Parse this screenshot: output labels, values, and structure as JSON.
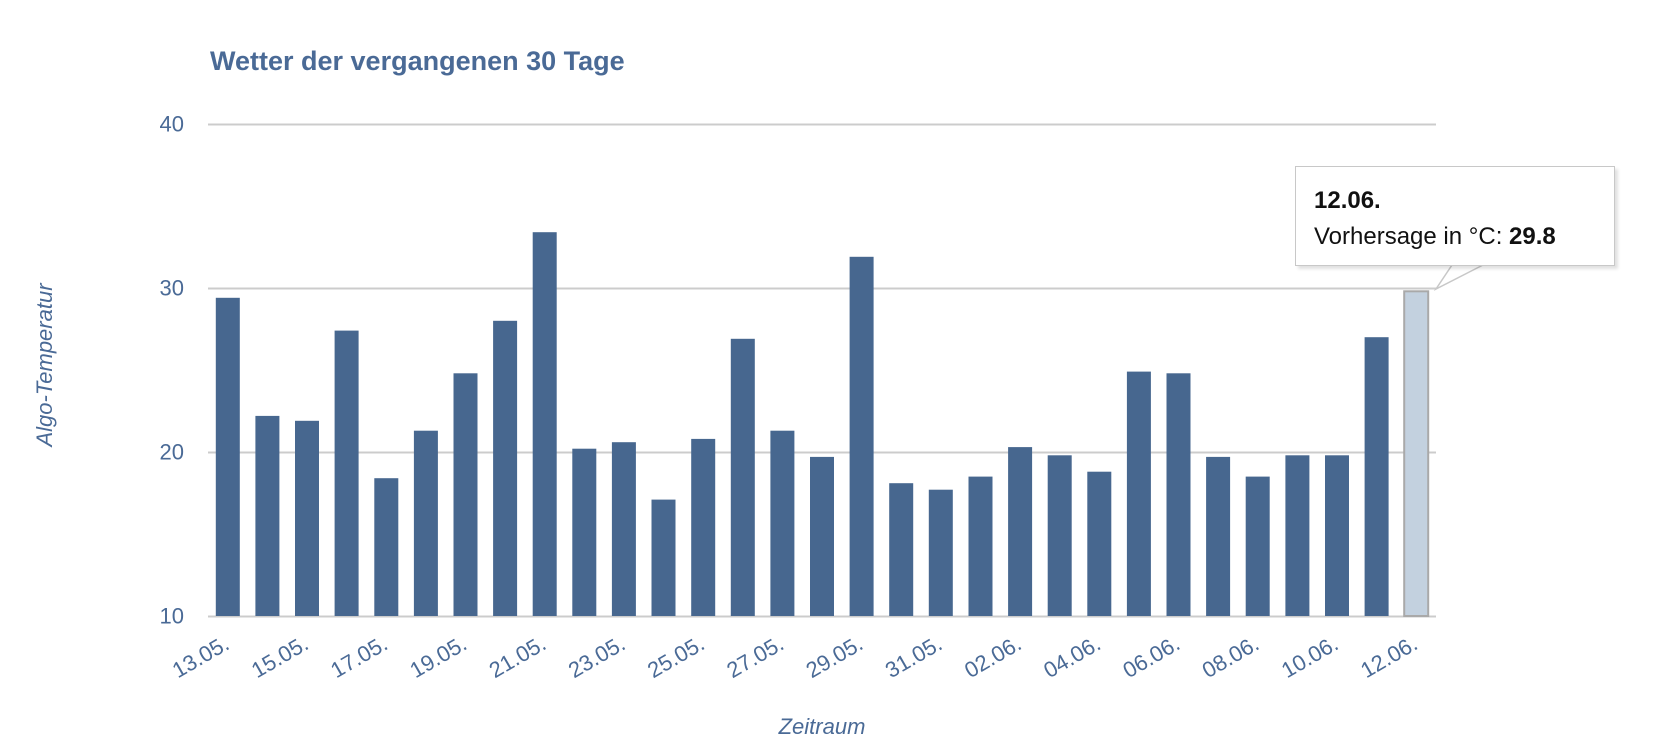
{
  "chart": {
    "title": "Wetter der vergangenen 30 Tage",
    "y_axis_title": "Algo-Temperatur",
    "x_axis_title": "Zeitraum",
    "colors": {
      "bar": "#47678f",
      "bar_highlight": "#c3d1df",
      "bar_highlight_border": "#a9a9a9",
      "gridline": "#cccccc",
      "axis_text": "#4a6a96",
      "title": "#4a6a96"
    }
  },
  "tooltip": {
    "date": "12.06.",
    "label": "Vorhersage in °C: ",
    "value": "29.8"
  },
  "chart_data": {
    "type": "bar",
    "title": "Wetter der vergangenen 30 Tage",
    "xlabel": "Zeitraum",
    "ylabel": "Algo-Temperatur",
    "ylim": [
      10,
      40
    ],
    "yticks": [
      10,
      20,
      30,
      40
    ],
    "grid": true,
    "legend": null,
    "categories": [
      "13.05.",
      "14.05.",
      "15.05.",
      "16.05.",
      "17.05.",
      "18.05.",
      "19.05.",
      "20.05.",
      "21.05.",
      "22.05.",
      "23.05.",
      "24.05.",
      "25.05.",
      "26.05.",
      "27.05.",
      "28.05.",
      "29.05.",
      "30.05.",
      "31.05.",
      "01.06.",
      "02.06.",
      "03.06.",
      "04.06.",
      "05.06.",
      "06.06.",
      "07.06.",
      "08.06.",
      "09.06.",
      "10.06.",
      "11.06.",
      "12.06."
    ],
    "visible_tick_labels": [
      "13.05.",
      "15.05.",
      "17.05.",
      "19.05.",
      "21.05.",
      "23.05.",
      "25.05.",
      "27.05.",
      "29.05.",
      "31.05.",
      "02.06.",
      "04.06.",
      "06.06.",
      "08.06.",
      "10.06.",
      "12.06."
    ],
    "series": [
      {
        "name": "Vorhersage in °C",
        "values": [
          29.4,
          22.2,
          21.9,
          27.4,
          18.4,
          21.3,
          24.8,
          28.0,
          33.4,
          20.2,
          20.6,
          17.1,
          20.8,
          26.9,
          21.3,
          19.7,
          31.9,
          18.1,
          17.7,
          18.5,
          20.3,
          19.8,
          18.8,
          24.9,
          24.8,
          19.7,
          18.5,
          19.8,
          19.8,
          27.0,
          29.8
        ]
      }
    ],
    "highlighted_index": 30,
    "annotations": [
      {
        "type": "tooltip",
        "category": "12.06.",
        "text": "Vorhersage in °C: 29.8"
      }
    ]
  }
}
